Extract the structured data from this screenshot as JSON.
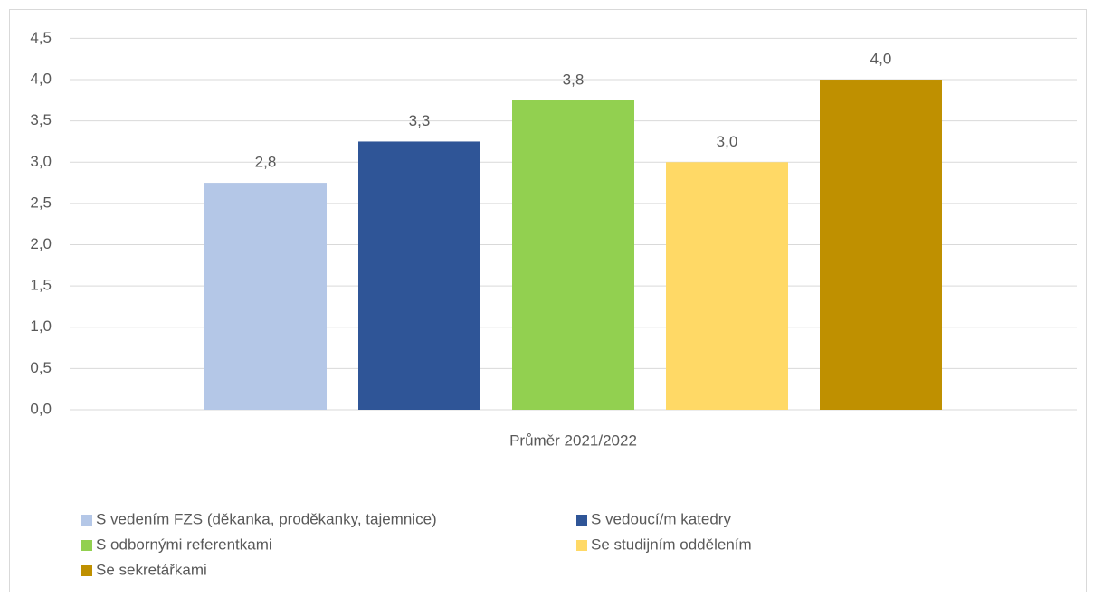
{
  "chart_data": {
    "type": "bar",
    "categories": [
      "Průměr 2021/2022"
    ],
    "series": [
      {
        "name": "S vedením FZS (děkanka, proděkanky, tajemnice)",
        "color": "#b4c7e7",
        "values": [
          2.75
        ],
        "value_labels": [
          "2,8"
        ]
      },
      {
        "name": "S vedoucí/m katedry",
        "color": "#2f5597",
        "values": [
          3.25
        ],
        "value_labels": [
          "3,3"
        ]
      },
      {
        "name": "S odbornými referentkami",
        "color": "#92d050",
        "values": [
          3.75
        ],
        "value_labels": [
          "3,8"
        ]
      },
      {
        "name": "Se studijním oddělením",
        "color": "#ffd966",
        "values": [
          3.0
        ],
        "value_labels": [
          "3,0"
        ]
      },
      {
        "name": "Se sekretářkami",
        "color": "#bf9000",
        "values": [
          4.0
        ],
        "value_labels": [
          "4,0"
        ]
      }
    ],
    "ylim": [
      0,
      4.5
    ],
    "yticks": [
      {
        "value": 0,
        "label": "0,0"
      },
      {
        "value": 0.5,
        "label": "0,5"
      },
      {
        "value": 1,
        "label": "1,0"
      },
      {
        "value": 1.5,
        "label": "1,5"
      },
      {
        "value": 2,
        "label": "2,0"
      },
      {
        "value": 2.5,
        "label": "2,5"
      },
      {
        "value": 3,
        "label": "3,0"
      },
      {
        "value": 3.5,
        "label": "3,5"
      },
      {
        "value": 4,
        "label": "4,0"
      },
      {
        "value": 4.5,
        "label": "4,5"
      }
    ],
    "grid": true,
    "legend": "bottom"
  }
}
